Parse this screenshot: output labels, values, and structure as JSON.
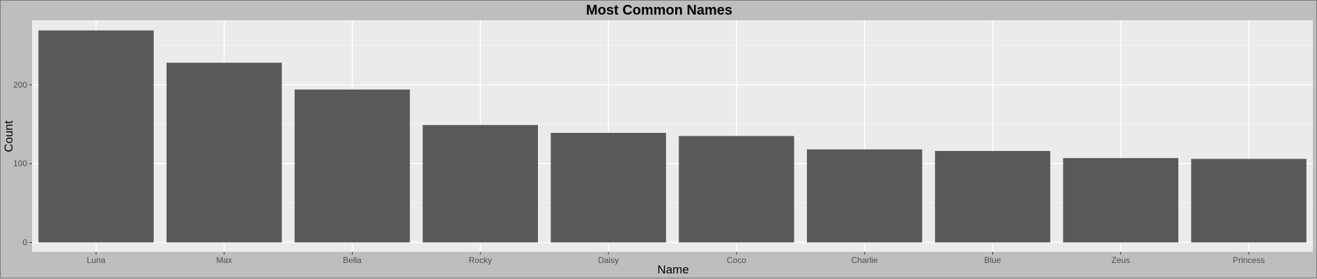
{
  "chart_data": {
    "type": "bar",
    "title": "Most Common Names",
    "xlabel": "Name",
    "ylabel": "Count",
    "categories": [
      "Luna",
      "Max",
      "Bella",
      "Rocky",
      "Daisy",
      "Coco",
      "Charlie",
      "Blue",
      "Zeus",
      "Princess"
    ],
    "values": [
      269,
      228,
      194,
      149,
      139,
      135,
      118,
      116,
      107,
      106
    ],
    "ylim": [
      -12,
      282
    ],
    "yticks": [
      0,
      100,
      200
    ],
    "grid": true,
    "legend": "none",
    "colors": {
      "bar": "#595959",
      "panel": "#ebebeb",
      "page": "#bebebe",
      "grid": "#ffffff",
      "text": "#000000",
      "tick_text": "#4d4d4d"
    }
  }
}
